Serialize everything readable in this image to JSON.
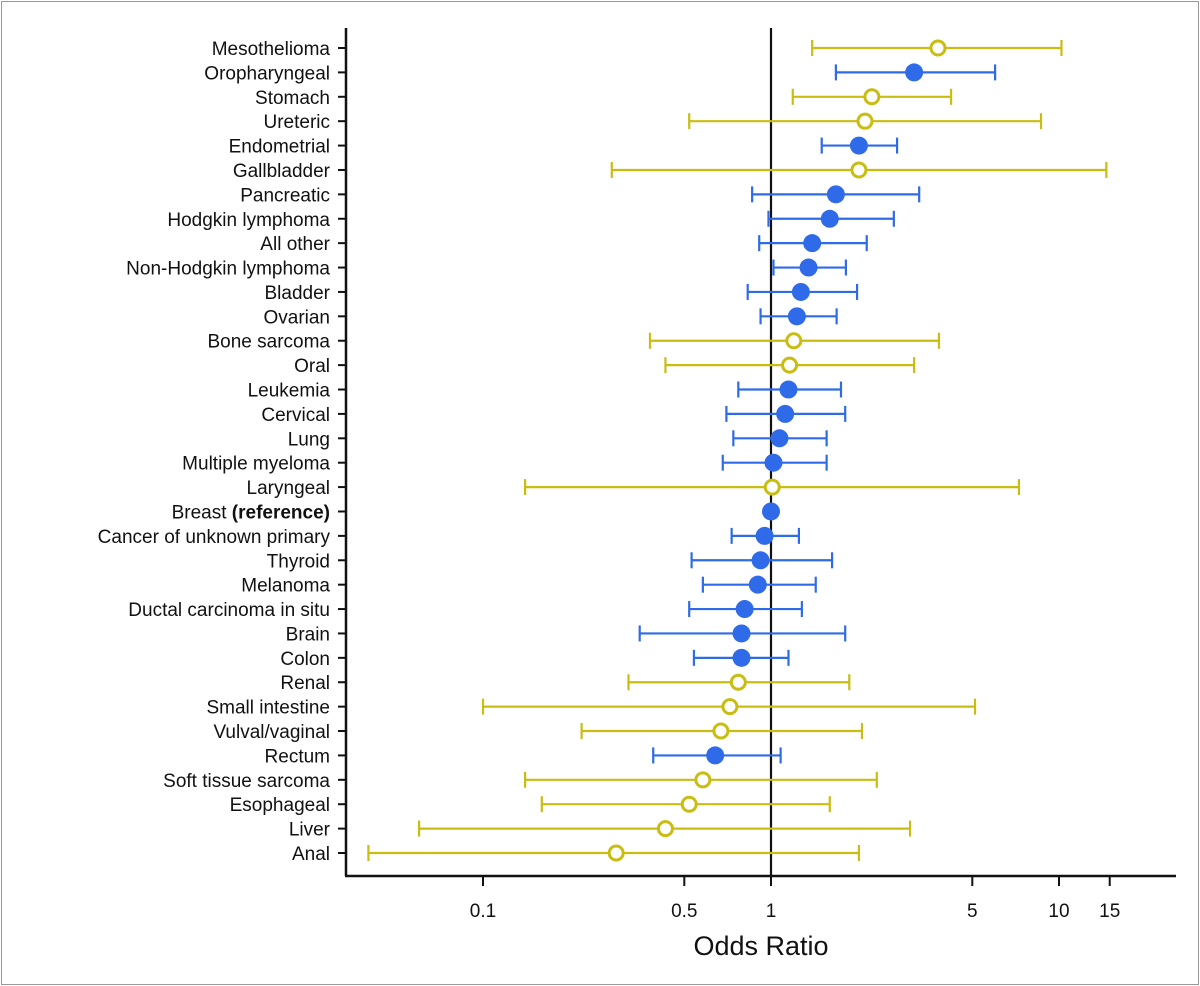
{
  "chart_data": {
    "type": "forest",
    "xlabel": "Odds Ratio",
    "xscale": "log",
    "xlim": [
      0.033,
      25
    ],
    "xticks": [
      0.1,
      0.5,
      1,
      5,
      10,
      15
    ],
    "xtick_labels": [
      "0.1",
      "0.5",
      "1",
      "5",
      "10",
      "15"
    ],
    "reference_line": 1,
    "grid": false,
    "colors": {
      "filled": "#2f6be8",
      "open": "#c9bd12",
      "axis": "#111111"
    },
    "rows": [
      {
        "label": "Mesothelioma",
        "or": 3.8,
        "lo": 1.39,
        "hi": 10.2,
        "marker": "open"
      },
      {
        "label": "Oropharyngeal",
        "or": 3.14,
        "lo": 1.68,
        "hi": 6.0,
        "marker": "filled"
      },
      {
        "label": "Stomach",
        "or": 2.24,
        "lo": 1.19,
        "hi": 4.22,
        "marker": "open"
      },
      {
        "label": "Ureteric",
        "or": 2.12,
        "lo": 0.52,
        "hi": 8.66,
        "marker": "open"
      },
      {
        "label": "Endometrial",
        "or": 2.02,
        "lo": 1.5,
        "hi": 2.74,
        "marker": "filled"
      },
      {
        "label": "Gallbladder",
        "or": 2.02,
        "lo": 0.28,
        "hi": 14.6,
        "marker": "open"
      },
      {
        "label": "Pancreatic",
        "or": 1.68,
        "lo": 0.86,
        "hi": 3.27,
        "marker": "filled"
      },
      {
        "label": "Hodgkin lymphoma",
        "or": 1.6,
        "lo": 0.98,
        "hi": 2.67,
        "marker": "filled"
      },
      {
        "label": "All other",
        "or": 1.39,
        "lo": 0.91,
        "hi": 2.15,
        "marker": "filled"
      },
      {
        "label": "Non-Hodgkin lymphoma",
        "or": 1.35,
        "lo": 1.02,
        "hi": 1.82,
        "marker": "filled"
      },
      {
        "label": "Bladder",
        "or": 1.27,
        "lo": 0.83,
        "hi": 1.99,
        "marker": "filled"
      },
      {
        "label": "Ovarian",
        "or": 1.23,
        "lo": 0.92,
        "hi": 1.69,
        "marker": "filled"
      },
      {
        "label": "Bone sarcoma",
        "or": 1.2,
        "lo": 0.38,
        "hi": 3.83,
        "marker": "open"
      },
      {
        "label": "Oral",
        "or": 1.16,
        "lo": 0.43,
        "hi": 3.14,
        "marker": "open"
      },
      {
        "label": "Leukemia",
        "or": 1.15,
        "lo": 0.77,
        "hi": 1.75,
        "marker": "filled"
      },
      {
        "label": "Cervical",
        "or": 1.12,
        "lo": 0.7,
        "hi": 1.81,
        "marker": "filled"
      },
      {
        "label": "Lung",
        "or": 1.07,
        "lo": 0.74,
        "hi": 1.56,
        "marker": "filled"
      },
      {
        "label": "Multiple myeloma",
        "or": 1.02,
        "lo": 0.68,
        "hi": 1.56,
        "marker": "filled"
      },
      {
        "label": "Laryngeal",
        "or": 1.01,
        "lo": 0.14,
        "hi": 7.26,
        "marker": "open"
      },
      {
        "label": "Breast",
        "label_suffix": "(reference)",
        "or": 1.0,
        "lo": null,
        "hi": null,
        "marker": "filled"
      },
      {
        "label": "Cancer of unknown primary",
        "or": 0.95,
        "lo": 0.73,
        "hi": 1.25,
        "marker": "filled"
      },
      {
        "label": "Thyroid",
        "or": 0.92,
        "lo": 0.53,
        "hi": 1.63,
        "marker": "filled"
      },
      {
        "label": "Melanoma",
        "or": 0.9,
        "lo": 0.58,
        "hi": 1.43,
        "marker": "filled"
      },
      {
        "label": "Ductal carcinoma in situ",
        "or": 0.81,
        "lo": 0.52,
        "hi": 1.28,
        "marker": "filled"
      },
      {
        "label": "Brain",
        "or": 0.79,
        "lo": 0.35,
        "hi": 1.81,
        "marker": "filled"
      },
      {
        "label": "Colon",
        "or": 0.79,
        "lo": 0.54,
        "hi": 1.15,
        "marker": "filled"
      },
      {
        "label": "Renal",
        "or": 0.77,
        "lo": 0.32,
        "hi": 1.87,
        "marker": "open"
      },
      {
        "label": "Small intestine",
        "or": 0.72,
        "lo": 0.1,
        "hi": 5.11,
        "marker": "open"
      },
      {
        "label": "Vulval/vaginal",
        "or": 0.67,
        "lo": 0.22,
        "hi": 2.07,
        "marker": "open"
      },
      {
        "label": "Rectum",
        "or": 0.64,
        "lo": 0.39,
        "hi": 1.08,
        "marker": "filled"
      },
      {
        "label": "Soft tissue sarcoma",
        "or": 0.58,
        "lo": 0.14,
        "hi": 2.33,
        "marker": "open"
      },
      {
        "label": "Esophageal",
        "or": 0.52,
        "lo": 0.16,
        "hi": 1.6,
        "marker": "open"
      },
      {
        "label": "Liver",
        "or": 0.43,
        "lo": 0.06,
        "hi": 3.04,
        "marker": "open"
      },
      {
        "label": "Anal",
        "or": 0.29,
        "lo": 0.04,
        "hi": 2.02,
        "marker": "open"
      }
    ]
  }
}
